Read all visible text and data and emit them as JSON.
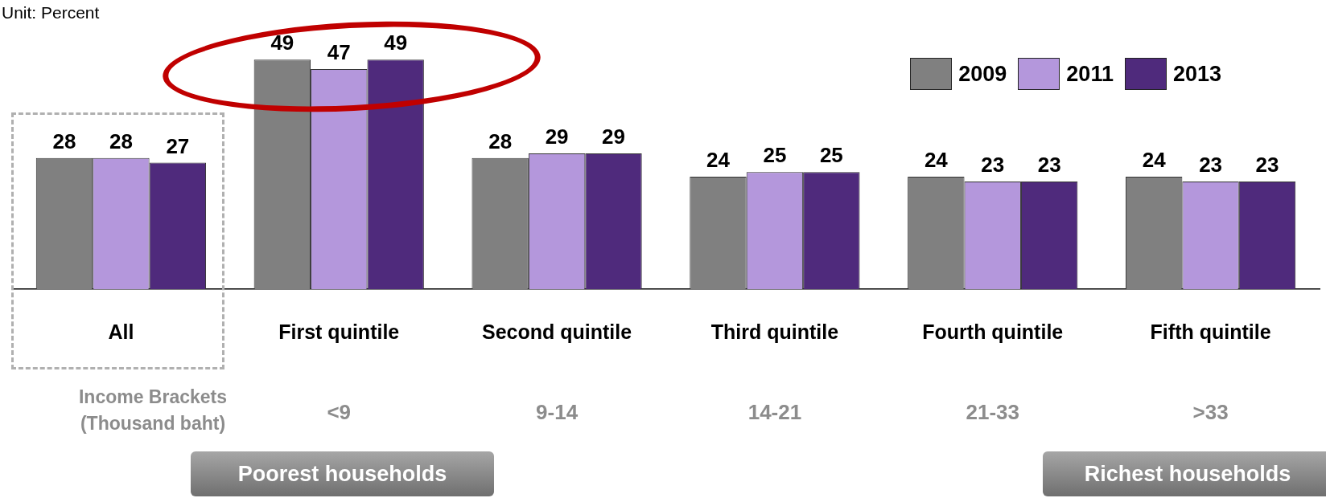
{
  "chart_data": {
    "type": "bar",
    "categories": [
      "All",
      "First quintile",
      "Second quintile",
      "Third quintile",
      "Fourth quintile",
      "Fifth quintile"
    ],
    "series": [
      {
        "name": "2009",
        "color": "#808080",
        "values": [
          28,
          49,
          28,
          24,
          24,
          24
        ]
      },
      {
        "name": "2011",
        "color": "#b497dc",
        "values": [
          28,
          47,
          29,
          25,
          23,
          23
        ]
      },
      {
        "name": "2013",
        "color": "#4f2a7c",
        "values": [
          27,
          49,
          29,
          25,
          23,
          23
        ]
      }
    ],
    "data_labels": true,
    "legend": "top right",
    "grid": false,
    "annotations": [
      "Unit: Percent",
      "Income Brackets (Thousand baht)",
      "<9",
      "9-14",
      "14-21",
      "21-33",
      ">33",
      "Poorest households",
      "Richest households"
    ]
  }
}
